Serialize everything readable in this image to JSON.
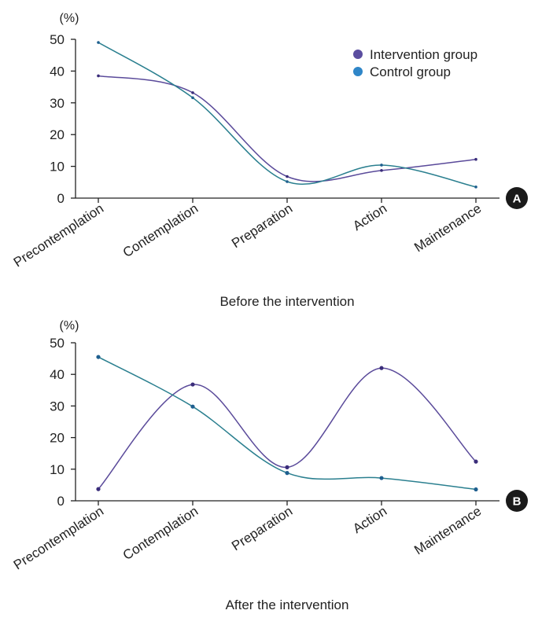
{
  "colors": {
    "intervention": "#5a4a9a",
    "intervention_marker": "#3a2d7a",
    "control": "#2a7f8f",
    "control_marker": "#1f5f8f",
    "legend_intervention": "#5b4ea0",
    "legend_control": "#2f86c8",
    "badge": "#1a1a1a"
  },
  "legend": {
    "intervention": "Intervention group",
    "control": "Control group"
  },
  "chart_data": [
    {
      "type": "line",
      "panel": "A",
      "caption": "Before the intervention",
      "ylabel": "(%)",
      "ylim": [
        0,
        50
      ],
      "yticks": [
        0,
        10,
        20,
        30,
        40,
        50
      ],
      "categories": [
        "Precontemplation",
        "Contemplation",
        "Preparation",
        "Action",
        "Maintenance"
      ],
      "series": [
        {
          "name": "Intervention group",
          "key": "intervention",
          "values": [
            38.5,
            33.2,
            6.8,
            8.7,
            12.2
          ]
        },
        {
          "name": "Control group",
          "key": "control",
          "values": [
            49.0,
            31.6,
            5.2,
            10.4,
            3.5
          ]
        }
      ],
      "legend_position": "top-right",
      "grid": false
    },
    {
      "type": "line",
      "panel": "B",
      "caption": "After the intervention",
      "ylabel": "(%)",
      "ylim": [
        0,
        50
      ],
      "yticks": [
        0,
        10,
        20,
        30,
        40,
        50
      ],
      "categories": [
        "Precontemplation",
        "Contemplation",
        "Preparation",
        "Action",
        "Maintenance"
      ],
      "series": [
        {
          "name": "Intervention group",
          "key": "intervention",
          "values": [
            3.7,
            36.8,
            10.6,
            42.0,
            12.4
          ]
        },
        {
          "name": "Control group",
          "key": "control",
          "values": [
            45.5,
            29.8,
            8.8,
            7.2,
            3.6
          ]
        }
      ],
      "grid": false
    }
  ]
}
